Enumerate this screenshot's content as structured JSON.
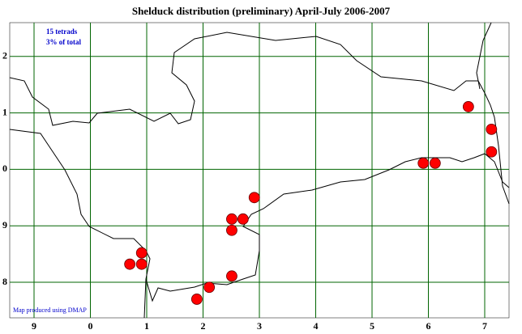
{
  "header": {
    "title": "Shelduck distribution (preliminary) April-July 2006-2007"
  },
  "notes": {
    "count": "15 tetrads",
    "share": "3% of total"
  },
  "credit": "Map produced using DMAP",
  "grid": {
    "xticks": [
      {
        "value": 0,
        "label": "9"
      },
      {
        "value": 1,
        "label": "0"
      },
      {
        "value": 2,
        "label": "1"
      },
      {
        "value": 3,
        "label": "2"
      },
      {
        "value": 4,
        "label": "3"
      },
      {
        "value": 5,
        "label": "4"
      },
      {
        "value": 6,
        "label": "5"
      },
      {
        "value": 7,
        "label": "6"
      },
      {
        "value": 8,
        "label": "7"
      }
    ],
    "yticks": [
      {
        "value": 0,
        "label": "8"
      },
      {
        "value": 1,
        "label": "9"
      },
      {
        "value": 2,
        "label": "0"
      },
      {
        "value": 3,
        "label": "1"
      },
      {
        "value": 4,
        "label": "2"
      }
    ],
    "color": "#006400"
  },
  "records": {
    "color": "#ff0000",
    "points": [
      {
        "x": 1.7,
        "y": 0.32
      },
      {
        "x": 1.91,
        "y": 0.52
      },
      {
        "x": 1.91,
        "y": 0.32
      },
      {
        "x": 2.89,
        "y": -0.3
      },
      {
        "x": 3.11,
        "y": -0.09
      },
      {
        "x": 3.51,
        "y": 0.11
      },
      {
        "x": 3.51,
        "y": 0.92
      },
      {
        "x": 3.51,
        "y": 1.12
      },
      {
        "x": 3.71,
        "y": 1.12
      },
      {
        "x": 3.91,
        "y": 1.5
      },
      {
        "x": 6.91,
        "y": 2.11
      },
      {
        "x": 7.12,
        "y": 2.11
      },
      {
        "x": 7.71,
        "y": 3.11
      },
      {
        "x": 8.12,
        "y": 2.71
      },
      {
        "x": 8.12,
        "y": 2.31
      }
    ]
  }
}
